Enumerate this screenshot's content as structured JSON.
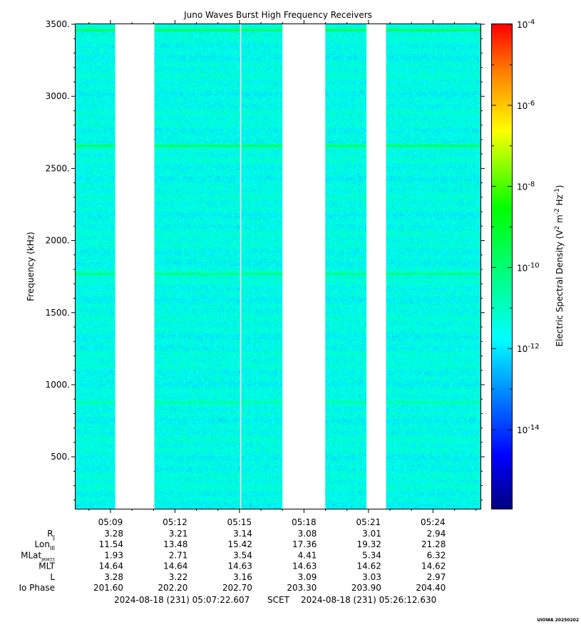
{
  "chart_data": {
    "type": "heatmap",
    "title": "Juno Waves Burst High Frequency Receivers",
    "ylabel": "Frequency (kHz)",
    "ylim": [
      140,
      3500
    ],
    "yticks": [
      {
        "value": 500,
        "label": "500."
      },
      {
        "value": 1000,
        "label": "1000."
      },
      {
        "value": 1500,
        "label": "1500."
      },
      {
        "value": 2000,
        "label": "2000."
      },
      {
        "value": 2500,
        "label": "2500."
      },
      {
        "value": 3000,
        "label": "3000."
      },
      {
        "value": 3500,
        "label": "3500."
      }
    ],
    "xlim_minutes": [
      307.3768,
      326.2105
    ],
    "xticks": [
      {
        "minute": 309,
        "label": "05:09"
      },
      {
        "minute": 312,
        "label": "05:12"
      },
      {
        "minute": 315,
        "label": "05:15"
      },
      {
        "minute": 318,
        "label": "05:18"
      },
      {
        "minute": 321,
        "label": "05:21"
      },
      {
        "minute": 324,
        "label": "05:24"
      }
    ],
    "data_gaps_minutes": [
      [
        309.22,
        311.04
      ],
      [
        315.03,
        315.08
      ],
      [
        317.0,
        318.99
      ],
      [
        320.91,
        321.82
      ]
    ],
    "emission_lines_khz": [
      {
        "freq": 3460,
        "strength": 0.8
      },
      {
        "freq": 2660,
        "strength": 0.75
      },
      {
        "freq": 1770,
        "strength": 0.6
      },
      {
        "freq": 880,
        "strength": 0.25
      }
    ],
    "background_level_exp": -11.5,
    "colorbar": {
      "label": "Electric Spectral Density (V² m⁻² Hz⁻¹)",
      "label_parts": {
        "pre": "Electric Spectral Density (V",
        "sup1": "2",
        "mid": " m",
        "sup2": "-2",
        "mid2": " Hz",
        "sup3": "-1",
        "post": ")"
      },
      "range_exp": [
        -15.95,
        -4.0
      ],
      "ticks": [
        {
          "exp": -4,
          "base": "10",
          "sup": "-4"
        },
        {
          "exp": -6,
          "base": "10",
          "sup": "-6"
        },
        {
          "exp": -8,
          "base": "10",
          "sup": "-8"
        },
        {
          "exp": -10,
          "base": "10",
          "sup": "-10"
        },
        {
          "exp": -12,
          "base": "10",
          "sup": "-12"
        },
        {
          "exp": -14,
          "base": "10",
          "sup": "-14"
        }
      ]
    },
    "ephemeris_rows": [
      {
        "label": "R",
        "sub": "J",
        "values": [
          "3.28",
          "3.21",
          "3.14",
          "3.08",
          "3.01",
          "2.94"
        ]
      },
      {
        "label": "Lon",
        "sub": "III",
        "values": [
          "11.54",
          "13.48",
          "15.42",
          "17.36",
          "19.32",
          "21.28"
        ]
      },
      {
        "label": "MLat",
        "sub": "JRM33",
        "values": [
          "1.93",
          "2.71",
          "3.54",
          "4.41",
          "5.34",
          "6.32"
        ]
      },
      {
        "label": "MLT",
        "sub": "",
        "values": [
          "14.64",
          "14.64",
          "14.63",
          "14.63",
          "14.62",
          "14.62"
        ]
      },
      {
        "label": "L",
        "sub": "",
        "values": [
          "3.28",
          "3.22",
          "3.16",
          "3.09",
          "3.03",
          "2.97"
        ]
      },
      {
        "label": "Io Phase",
        "sub": "",
        "values": [
          "201.60",
          "202.20",
          "202.70",
          "203.30",
          "203.90",
          "204.40"
        ]
      }
    ],
    "time_range": {
      "start": "2024-08-18 (231) 05:07:22.607",
      "frame": "SCET",
      "end": "2024-08-18 (231) 05:26:12.630"
    },
    "footer_note": "UIOWA 20250202"
  }
}
